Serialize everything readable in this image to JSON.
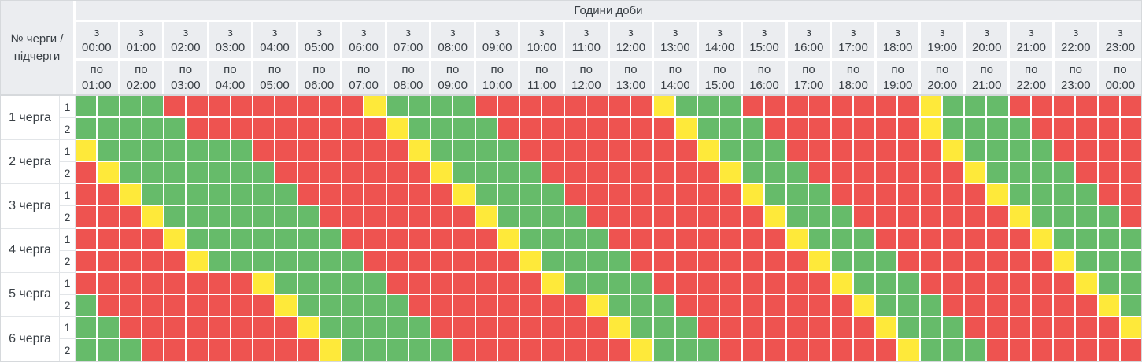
{
  "table": {
    "title": "Години доби",
    "corner_label": "№ черги / підчерги",
    "hour_from_prefix": "з",
    "hour_to_prefix": "по",
    "hours": [
      {
        "from": "00:00",
        "to": "01:00"
      },
      {
        "from": "01:00",
        "to": "02:00"
      },
      {
        "from": "02:00",
        "to": "03:00"
      },
      {
        "from": "03:00",
        "to": "04:00"
      },
      {
        "from": "04:00",
        "to": "05:00"
      },
      {
        "from": "05:00",
        "to": "06:00"
      },
      {
        "from": "06:00",
        "to": "07:00"
      },
      {
        "from": "07:00",
        "to": "08:00"
      },
      {
        "from": "08:00",
        "to": "09:00"
      },
      {
        "from": "09:00",
        "to": "10:00"
      },
      {
        "from": "10:00",
        "to": "11:00"
      },
      {
        "from": "11:00",
        "to": "12:00"
      },
      {
        "from": "12:00",
        "to": "13:00"
      },
      {
        "from": "13:00",
        "to": "14:00"
      },
      {
        "from": "14:00",
        "to": "15:00"
      },
      {
        "from": "15:00",
        "to": "16:00"
      },
      {
        "from": "16:00",
        "to": "17:00"
      },
      {
        "from": "17:00",
        "to": "18:00"
      },
      {
        "from": "18:00",
        "to": "19:00"
      },
      {
        "from": "19:00",
        "to": "20:00"
      },
      {
        "from": "20:00",
        "to": "21:00"
      },
      {
        "from": "21:00",
        "to": "22:00"
      },
      {
        "from": "22:00",
        "to": "23:00"
      },
      {
        "from": "23:00",
        "to": "00:00"
      }
    ],
    "colors": {
      "power_on_green": "#66bb6a",
      "outage_red": "#ee5350",
      "possible_outage_yellow": "#fee93a",
      "header_bg": "#ebedf0"
    },
    "cell_states": {
      "G": "on",
      "R": "off",
      "Y": "maybe"
    },
    "cell_granularity_minutes": 30,
    "queues": [
      {
        "label": "1 черга",
        "subqueues": [
          {
            "label": "1",
            "cells": "GGGGRRRRRRRRRYGGGGRRRRRRRRYGGGRRRRRRRRYGGGRRRRRR"
          },
          {
            "label": "2",
            "cells": "GGGGGRRRRRRRRRYGGGGRRRRRRRRYGGGRRRRRRRYGGGGRRRRR"
          }
        ]
      },
      {
        "label": "2 черга",
        "subqueues": [
          {
            "label": "1",
            "cells": "YGGGGGGGRRRRRRRYGGGGRRRRRRRRYGGGRRRRRRRYGGGGRRRR"
          },
          {
            "label": "2",
            "cells": "RYGGGGGGGRRRRRRRYGGGGRRRRRRRRYGGGRRRRRRRYGGGGRRR"
          }
        ]
      },
      {
        "label": "3 черга",
        "subqueues": [
          {
            "label": "1",
            "cells": "RRYGGGGGGGRRRRRRRYGGGGRRRRRRRRYGGGRRRRRRRYGGGGRR"
          },
          {
            "label": "2",
            "cells": "RRRYGGGGGGGRRRRRRRYGGGGRRRRRRRRYGGGRRRRRRRYGGGGR"
          }
        ]
      },
      {
        "label": "4 черга",
        "subqueues": [
          {
            "label": "1",
            "cells": "RRRRYGGGGGGGRRRRRRRYGGGGRRRRRRRRYGGGRRRRRRRYGGGG"
          },
          {
            "label": "2",
            "cells": "RRRRRYGGGGGGGRRRRRRRYGGGGRRRRRRRRYGGGRRRRRRRYGGG"
          }
        ]
      },
      {
        "label": "5 черга",
        "subqueues": [
          {
            "label": "1",
            "cells": "RRRRRRRRYGGGGGRRRRRRRYGGGGRRRRRRRRYGGGRRRRRRRYGG"
          },
          {
            "label": "2",
            "cells": "GRRRRRRRRYGGGGGRRRRRRRRYGGGRRRRRRRRYGGGRRRRRRRYG"
          }
        ]
      },
      {
        "label": "6 черга",
        "subqueues": [
          {
            "label": "1",
            "cells": "GGRRRRRRRRYGGGGGRRRRRRRRYGGGRRRRRRRRYGGGRRRRRRRY"
          },
          {
            "label": "2",
            "cells": "GGGRRRRRRRRYGGGGGRRRRRRRRYGGGRRRRRRRRYGGGRRRRRRR"
          }
        ]
      }
    ]
  }
}
